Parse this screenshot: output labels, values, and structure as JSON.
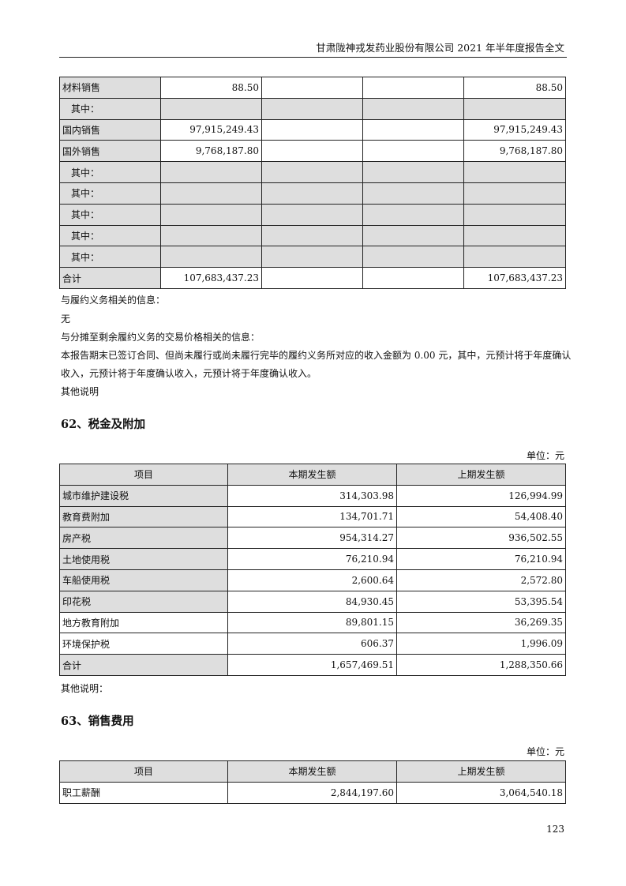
{
  "header": {
    "title": "甘肃陇神戎发药业股份有限公司 2021 年半年度报告全文"
  },
  "revenue_table": {
    "rows": [
      {
        "label": "材料销售",
        "c1": "88.50",
        "c2": "",
        "c3": "",
        "c4": "88.50",
        "shaded": false
      },
      {
        "label": "其中：",
        "c1": "",
        "c2": "",
        "c3": "",
        "c4": "",
        "shaded": true
      },
      {
        "label": "国内销售",
        "c1": "97,915,249.43",
        "c2": "",
        "c3": "",
        "c4": "97,915,249.43",
        "shaded": false
      },
      {
        "label": "国外销售",
        "c1": "9,768,187.80",
        "c2": "",
        "c3": "",
        "c4": "9,768,187.80",
        "shaded": false
      },
      {
        "label": "其中：",
        "c1": "",
        "c2": "",
        "c3": "",
        "c4": "",
        "shaded": true
      },
      {
        "label": "其中：",
        "c1": "",
        "c2": "",
        "c3": "",
        "c4": "",
        "shaded": true
      },
      {
        "label": "其中：",
        "c1": "",
        "c2": "",
        "c3": "",
        "c4": "",
        "shaded": true
      },
      {
        "label": "其中：",
        "c1": "",
        "c2": "",
        "c3": "",
        "c4": "",
        "shaded": true
      },
      {
        "label": "其中：",
        "c1": "",
        "c2": "",
        "c3": "",
        "c4": "",
        "shaded": true
      },
      {
        "label": "合计",
        "c1": "107,683,437.23",
        "c2": "",
        "c3": "",
        "c4": "107,683,437.23",
        "shaded": false
      }
    ]
  },
  "paragraphs": [
    "与履约义务相关的信息：",
    "无",
    "与分摊至剩余履约义务的交易价格相关的信息：",
    "本报告期末已签订合同、但尚未履行或尚未履行完毕的履约义务所对应的收入金额为 0.00 元，其中，元预计将于年度确认",
    "收入，元预计将于年度确认收入，元预计将于年度确认收入。",
    "其他说明"
  ],
  "section62": {
    "heading": "62、税金及附加",
    "unit": "单位：元",
    "columns": [
      "项目",
      "本期发生额",
      "上期发生额"
    ],
    "rows": [
      {
        "label": "城市维护建设税",
        "current": "314,303.98",
        "previous": "126,994.99",
        "shaded": true
      },
      {
        "label": "教育费附加",
        "current": "134,701.71",
        "previous": "54,408.40",
        "shaded": true
      },
      {
        "label": "房产税",
        "current": "954,314.27",
        "previous": "936,502.55",
        "shaded": true
      },
      {
        "label": "土地使用税",
        "current": "76,210.94",
        "previous": "76,210.94",
        "shaded": true
      },
      {
        "label": "车船使用税",
        "current": "2,600.64",
        "previous": "2,572.80",
        "shaded": true
      },
      {
        "label": "印花税",
        "current": "84,930.45",
        "previous": "53,395.54",
        "shaded": true
      },
      {
        "label": "地方教育附加",
        "current": "89,801.15",
        "previous": "36,269.35",
        "shaded": false
      },
      {
        "label": "环境保护税",
        "current": "606.37",
        "previous": "1,996.09",
        "shaded": false
      },
      {
        "label": "合计",
        "current": "1,657,469.51",
        "previous": "1,288,350.66",
        "shaded": true
      }
    ],
    "note": "其他说明："
  },
  "section63": {
    "heading": "63、销售费用",
    "unit": "单位：元",
    "columns": [
      "项目",
      "本期发生额",
      "上期发生额"
    ],
    "rows": [
      {
        "label": "职工薪酬",
        "current": "2,844,197.60",
        "previous": "3,064,540.18",
        "shaded": false
      }
    ]
  },
  "page_number": "123"
}
